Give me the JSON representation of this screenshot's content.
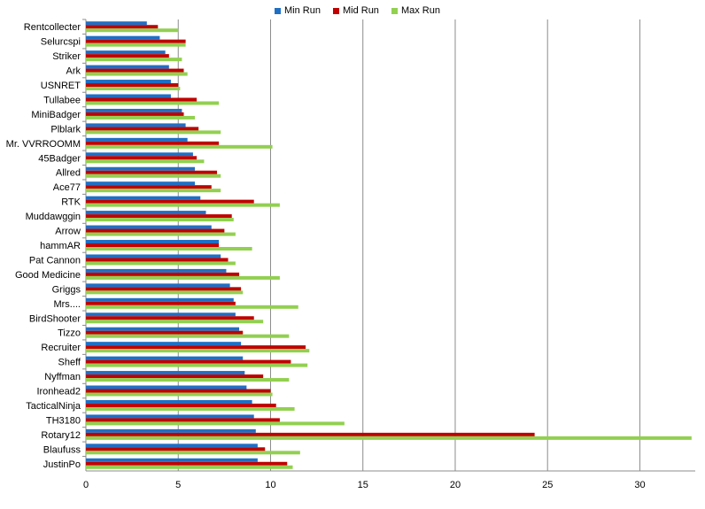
{
  "chart_data": {
    "type": "bar",
    "orientation": "horizontal",
    "categories": [
      "Rentcollecter",
      "Selurcspi",
      "Striker",
      "Ark",
      "USNRET",
      "Tullabee",
      "MiniBadger",
      "Plblark",
      "Mr. VVRROOMM",
      "45Badger",
      "Allred",
      "Ace77",
      "RTK",
      "Muddawggin",
      "Arrow",
      "hammAR",
      "Pat Cannon",
      "Good Medicine",
      "Griggs",
      "Mrs....",
      "BirdShooter",
      "Tizzo",
      "Recruiter",
      "Sheff",
      "Nyffman",
      "Ironhead2",
      "TacticalNinja",
      "TH3180",
      "Rotary12",
      "Blaufuss",
      "JustinPo"
    ],
    "series": [
      {
        "name": "Min Run",
        "color": "#1f6fc5",
        "values": [
          3.3,
          4.0,
          4.3,
          4.5,
          4.6,
          4.6,
          5.2,
          5.4,
          5.5,
          5.8,
          5.9,
          5.9,
          6.2,
          6.5,
          6.8,
          7.2,
          7.3,
          7.6,
          7.8,
          8.0,
          8.1,
          8.3,
          8.4,
          8.5,
          8.6,
          8.7,
          9.0,
          9.1,
          9.2,
          9.3,
          9.3
        ]
      },
      {
        "name": "Mid Run",
        "color": "#c00000",
        "values": [
          3.9,
          5.4,
          4.5,
          5.3,
          5.0,
          6.0,
          5.3,
          6.1,
          7.2,
          6.0,
          7.1,
          6.8,
          9.1,
          7.9,
          7.5,
          7.2,
          7.7,
          8.3,
          8.4,
          8.1,
          9.1,
          8.5,
          11.9,
          11.1,
          9.6,
          10.0,
          10.3,
          10.5,
          24.3,
          9.7,
          10.9
        ]
      },
      {
        "name": "Max Run",
        "color": "#92d050",
        "values": [
          5.0,
          5.4,
          5.2,
          5.5,
          5.1,
          7.2,
          5.9,
          7.3,
          10.1,
          6.4,
          7.3,
          7.3,
          10.5,
          8.0,
          8.1,
          9.0,
          8.1,
          10.5,
          8.5,
          11.5,
          9.6,
          11.0,
          12.1,
          12.0,
          11.0,
          10.1,
          11.3,
          14.0,
          32.8,
          11.6,
          11.2
        ]
      }
    ],
    "xticks": [
      0,
      5,
      10,
      15,
      20,
      25,
      30
    ],
    "xlim": [
      0,
      33
    ],
    "grid": "vertical",
    "legend_position": "top",
    "title": "",
    "xlabel": "",
    "ylabel": ""
  }
}
